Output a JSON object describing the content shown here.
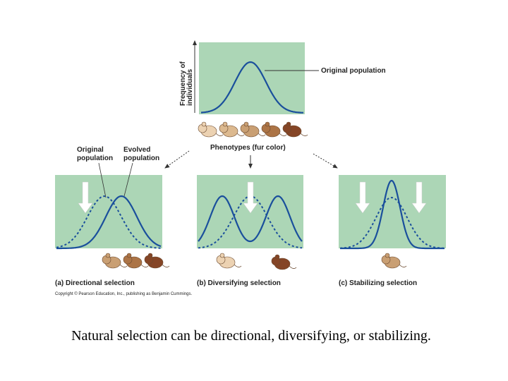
{
  "top_panel": {
    "y_axis_label": [
      "Frequency of",
      "individuals"
    ],
    "curve_label": "Original population",
    "x_axis_label": "Phenotypes (fur color)"
  },
  "panels": [
    {
      "label": "(a) Directional selection",
      "original_label": [
        "Original",
        "population"
      ],
      "evolved_label": [
        "Evolved",
        "population"
      ]
    },
    {
      "label": "(b) Diversifying selection"
    },
    {
      "label": "(c) Stabilizing selection"
    }
  ],
  "copyright": "Copyright © Pearson Education, Inc., publishing as Benjamin Cummings.",
  "caption": "Natural selection can be directional, diversifying, or stabilizing."
}
